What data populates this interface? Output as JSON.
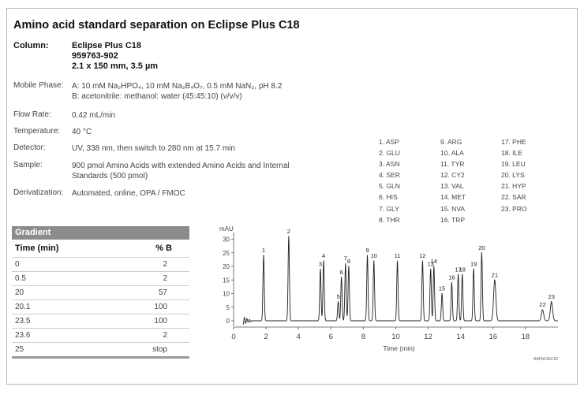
{
  "title": "Amino acid standard separation on Eclipse Plus C18",
  "conditions": {
    "column_label": "Column:",
    "column_lines": [
      "Eclipse Plus C18",
      "959763-902",
      "2.1 x 150 mm, 3.5 µm"
    ],
    "mobile_phase_label": "Mobile Phase:",
    "mobile_phase_a": "A: 10 mM Na₂HPO₄, 10 mM Na₂B₄O₇, 0.5 mM NaN₃, pH 8.2",
    "mobile_phase_b": "B: acetonitrile: methanol: water (45:45:10) (v/v/v)",
    "flow_rate_label": "Flow Rate:",
    "flow_rate": "0.42 mL/min",
    "temperature_label": "Temperature:",
    "temperature": "40 °C",
    "detector_label": "Detector:",
    "detector": "UV, 338 nm, then switch to 280 nm at 15.7 min",
    "sample_label": "Sample:",
    "sample_line1": "900 pmol Amino Acids with extended Amino Acids and Internal",
    "sample_line2": "Standards (500 pmol)",
    "derivatization_label": "Derivatization:",
    "derivatization": "Automated, online, OPA / FMOC"
  },
  "gradient": {
    "title": "Gradient",
    "col_time": "Time (min)",
    "col_b": "% B",
    "rows": [
      {
        "time": "0",
        "b": "2"
      },
      {
        "time": "0.5",
        "b": "2"
      },
      {
        "time": "20",
        "b": "57"
      },
      {
        "time": "20.1",
        "b": "100"
      },
      {
        "time": "23.5",
        "b": "100"
      },
      {
        "time": "23.6",
        "b": "2"
      },
      {
        "time": "25",
        "b": "stop"
      }
    ]
  },
  "peak_list": [
    [
      "1.  ASP",
      "2.  GLU",
      "3.  ASN",
      "4.  SER",
      "5.  GLN",
      "6.  HIS",
      "7.  GLY",
      "8.  THR"
    ],
    [
      "9.  ARG",
      "10.  ALA",
      "11.  TYR",
      "12.  CY2",
      "13.  VAL",
      "14.  MET",
      "15.  NVA",
      "16.  TRP"
    ],
    [
      "17.  PHE",
      "18.  ILE",
      "19.  LEU",
      "20.  LYS",
      "21.  HYP",
      "22.  SAR",
      "23.  PRO"
    ]
  ],
  "chart_data": {
    "type": "line",
    "ylabel": "mAU",
    "xlabel": "Time (min)",
    "xlim": [
      0,
      20
    ],
    "ylim": [
      -2,
      33
    ],
    "x_ticks": [
      0,
      2,
      4,
      6,
      8,
      10,
      12,
      14,
      16,
      18
    ],
    "y_ticks": [
      0,
      5,
      10,
      15,
      20,
      25,
      30
    ],
    "watermark": "AMINOACID",
    "peaks": [
      {
        "label": "1",
        "time": 1.85,
        "height": 24
      },
      {
        "label": "2",
        "time": 3.4,
        "height": 31
      },
      {
        "label": "3",
        "time": 5.35,
        "height": 19
      },
      {
        "label": "4",
        "time": 5.55,
        "height": 22
      },
      {
        "label": "5",
        "time": 6.45,
        "height": 7
      },
      {
        "label": "6",
        "time": 6.65,
        "height": 16
      },
      {
        "label": "7",
        "time": 6.9,
        "height": 21
      },
      {
        "label": "8",
        "time": 7.1,
        "height": 20
      },
      {
        "label": "9",
        "time": 8.25,
        "height": 24
      },
      {
        "label": "10",
        "time": 8.65,
        "height": 22
      },
      {
        "label": "11",
        "time": 10.1,
        "height": 22
      },
      {
        "label": "12",
        "time": 11.65,
        "height": 22
      },
      {
        "label": "13",
        "time": 12.15,
        "height": 19
      },
      {
        "label": "14",
        "time": 12.35,
        "height": 20
      },
      {
        "label": "15",
        "time": 12.85,
        "height": 10
      },
      {
        "label": "16",
        "time": 13.45,
        "height": 14
      },
      {
        "label": "17",
        "time": 13.85,
        "height": 17
      },
      {
        "label": "18",
        "time": 14.1,
        "height": 17
      },
      {
        "label": "19",
        "time": 14.8,
        "height": 19
      },
      {
        "label": "20",
        "time": 15.3,
        "height": 25
      },
      {
        "label": "21",
        "time": 16.1,
        "height": 15
      },
      {
        "label": "22",
        "time": 19.05,
        "height": 4
      },
      {
        "label": "23",
        "time": 19.6,
        "height": 7
      }
    ]
  }
}
